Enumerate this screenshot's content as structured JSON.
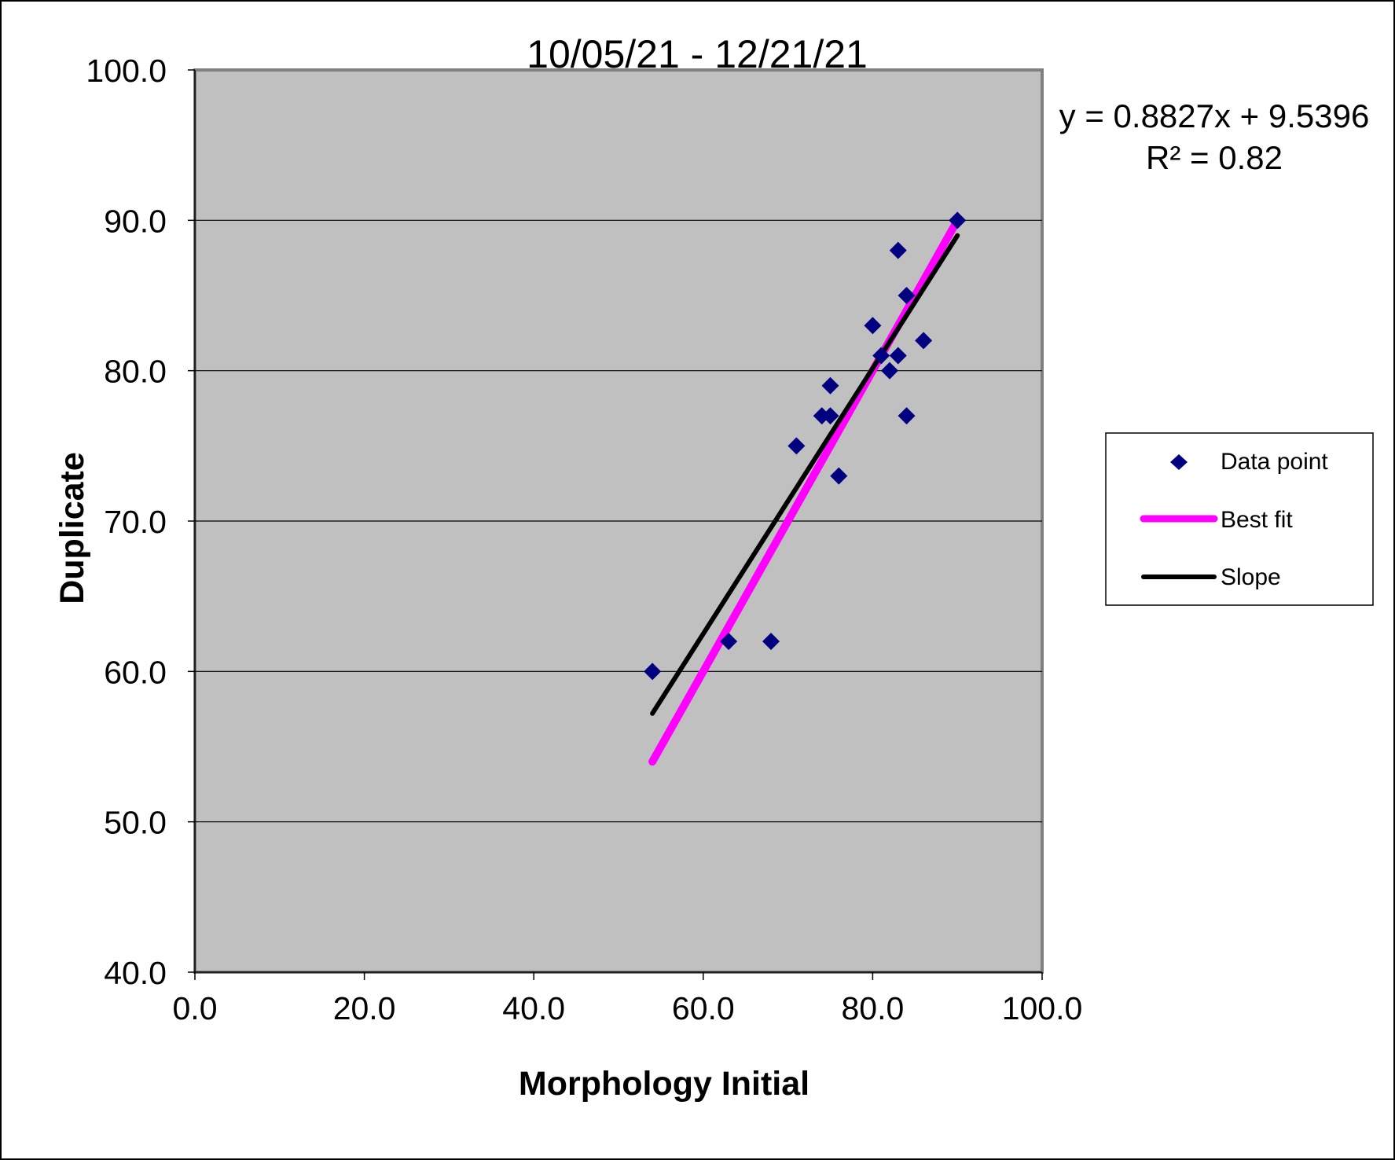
{
  "chart_data": {
    "type": "scatter",
    "title": "10/05/21 - 12/21/21",
    "xlabel": "Morphology Initial",
    "ylabel": "Duplicate",
    "xlim": [
      0,
      100
    ],
    "ylim": [
      40,
      100
    ],
    "x_ticks": [
      "0.0",
      "20.0",
      "40.0",
      "60.0",
      "80.0",
      "100.0"
    ],
    "y_ticks": [
      "40.0",
      "50.0",
      "60.0",
      "70.0",
      "80.0",
      "90.0",
      "100.0"
    ],
    "grid": "horizontal",
    "plot_background": "#c0c0c0",
    "trendline_equation": "y = 0.8827x + 9.5396",
    "r_squared": "R² = 0.82",
    "series": [
      {
        "name": "Data point",
        "kind": "scatter",
        "marker": "diamond",
        "color": "#000080",
        "points": [
          [
            54,
            60
          ],
          [
            63,
            62
          ],
          [
            68,
            62
          ],
          [
            71,
            75
          ],
          [
            74,
            77
          ],
          [
            75,
            77
          ],
          [
            75,
            79
          ],
          [
            76,
            73
          ],
          [
            80,
            83
          ],
          [
            81,
            81
          ],
          [
            82,
            80
          ],
          [
            83,
            81
          ],
          [
            83,
            88
          ],
          [
            84,
            85
          ],
          [
            84,
            77
          ],
          [
            86,
            82
          ],
          [
            90,
            90
          ]
        ]
      },
      {
        "name": "Best fit",
        "kind": "line",
        "color": "#ff00ff",
        "points": [
          [
            54,
            54
          ],
          [
            90,
            90
          ]
        ]
      },
      {
        "name": "Slope",
        "kind": "line",
        "color": "#000000",
        "points": [
          [
            54,
            57.2054
          ],
          [
            90,
            88.9826
          ]
        ]
      }
    ],
    "legend": {
      "position": "right",
      "entries": [
        {
          "label": "Data point",
          "symbol": "diamond",
          "color": "#000080"
        },
        {
          "label": "Best fit",
          "symbol": "line",
          "color": "#ff00ff"
        },
        {
          "label": "Slope",
          "symbol": "line",
          "color": "#000000"
        }
      ]
    }
  }
}
